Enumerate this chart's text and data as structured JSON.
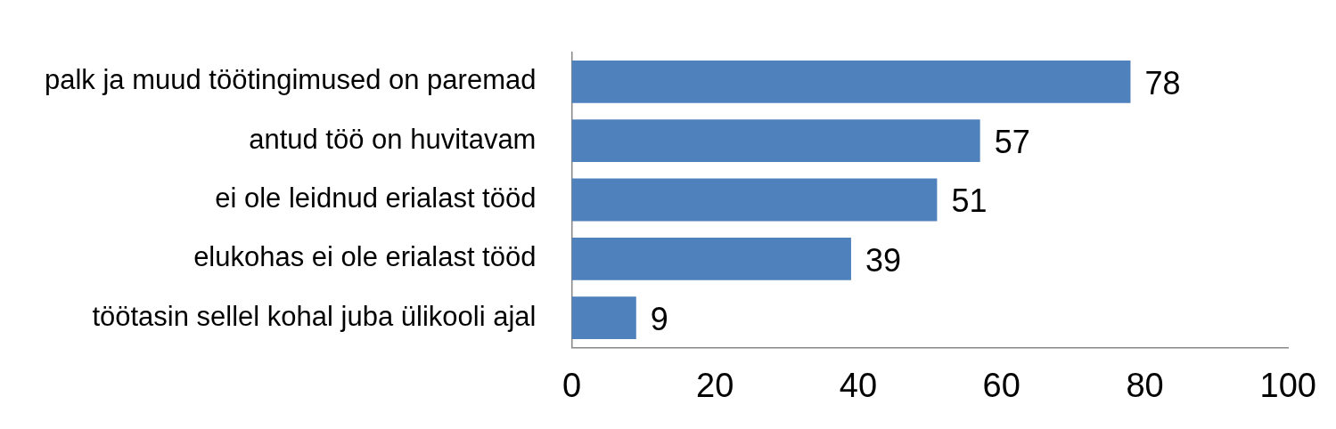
{
  "chart_data": {
    "type": "bar",
    "orientation": "horizontal",
    "categories": [
      "palk ja muud töötingimused on paremad",
      "antud töö on huvitavam",
      "ei ole leidnud erialast tööd",
      "elukohas ei ole erialast tööd",
      "töötasin sellel kohal juba ülikooli ajal"
    ],
    "values": [
      78,
      57,
      51,
      39,
      9
    ],
    "color": "#4f81bd",
    "xlim": [
      0,
      100
    ],
    "xticks": [
      0,
      20,
      40,
      60,
      80,
      100
    ],
    "data_labels": true
  }
}
